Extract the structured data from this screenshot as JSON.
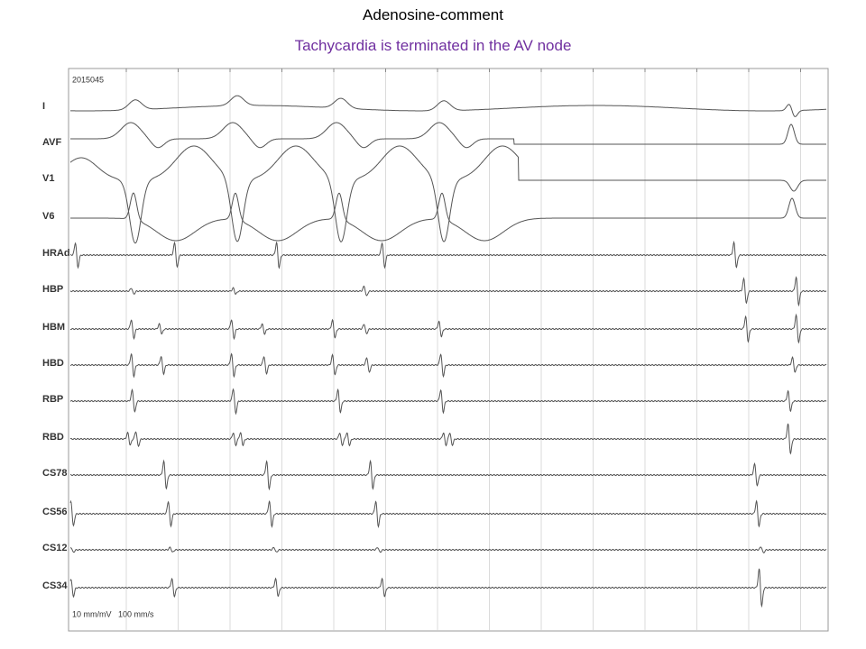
{
  "header": {
    "title": "Adenosine-comment",
    "subtitle": "Tachycardia is terminated in the AV node"
  },
  "recording": {
    "id": "2015045",
    "scale": "10 mm/mV   100 mm/s",
    "channels": [
      "I",
      "AVF",
      "V1",
      "V6",
      "HRAd",
      "HBP",
      "HBM",
      "HBD",
      "RBP",
      "RBD",
      "CS78",
      "CS56",
      "CS12",
      "CS34"
    ]
  }
}
